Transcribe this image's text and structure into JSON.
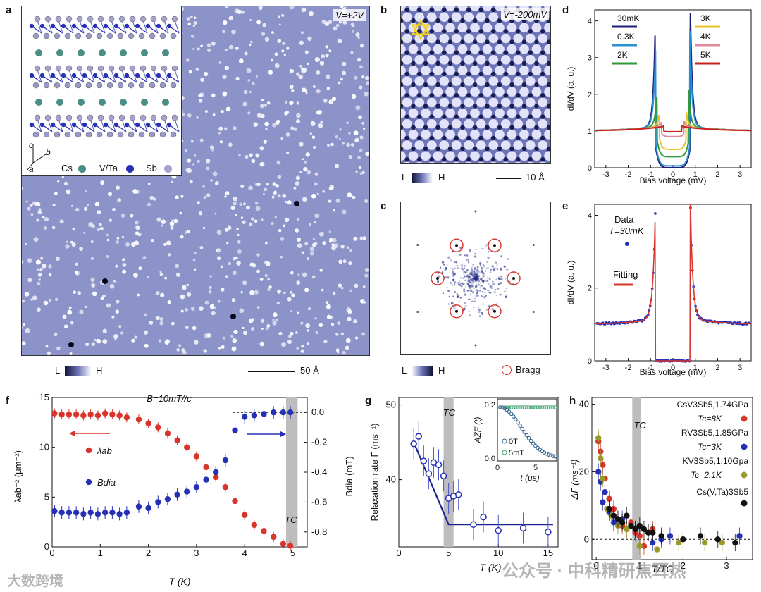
{
  "panels": {
    "a": {
      "label": "a",
      "voltage": "V=+2V",
      "legend": {
        "cs": "Cs",
        "vta": "V/Ta",
        "sb": "Sb"
      },
      "axes": {
        "c": "c",
        "b": "b",
        "a": "a"
      },
      "scale_label": "L",
      "scale_high": "H",
      "scalebar": "50 Å"
    },
    "b": {
      "label": "b",
      "voltage": "V=-200mV",
      "scale_label": "L",
      "scale_high": "H",
      "scalebar": "10 Å"
    },
    "c": {
      "label": "c",
      "scale_label": "L",
      "scale_high": "H",
      "bragg": "Bragg"
    },
    "d": {
      "label": "d"
    },
    "e": {
      "label": "e"
    },
    "f": {
      "label": "f",
      "field": "B=10mT//c"
    },
    "g": {
      "label": "g"
    },
    "h": {
      "label": "h"
    }
  },
  "colors": {
    "stm_bg": "#8c93c8",
    "red": "#d8342c",
    "blue": "#2630b4",
    "olive": "#9a9a2a",
    "black": "#111111"
  },
  "chart_data": [
    {
      "id": "d",
      "type": "line",
      "xlabel": "Bias voltage (mV)",
      "ylabel": "dI/dV (a. u.)",
      "xlim": [
        -3.5,
        3.5
      ],
      "ylim": [
        0,
        4.3
      ],
      "xticks": [
        "-3",
        "-2",
        "-1",
        "0",
        "1",
        "2",
        "3"
      ],
      "yticks": [
        "0",
        "1",
        "2",
        "3",
        "4"
      ],
      "series": [
        {
          "name": "30mK",
          "color": "#1c1f78",
          "gap": 0.78,
          "peak": 4.1,
          "floor": 0.0
        },
        {
          "name": "0.3K",
          "color": "#2a8fd0",
          "gap": 0.76,
          "peak": 3.6,
          "floor": 0.05
        },
        {
          "name": "2K",
          "color": "#2e9a3a",
          "gap": 0.7,
          "peak": 2.0,
          "floor": 0.3
        },
        {
          "name": "3K",
          "color": "#e8c42a",
          "gap": 0.6,
          "peak": 1.4,
          "floor": 0.5
        },
        {
          "name": "4K",
          "color": "#e08a98",
          "gap": 0.5,
          "peak": 1.15,
          "floor": 0.85
        },
        {
          "name": "5K",
          "color": "#c8201c",
          "gap": 0.4,
          "peak": 1.02,
          "floor": 0.98
        }
      ]
    },
    {
      "id": "e",
      "type": "scatter",
      "xlabel": "Bias voltage (mV)",
      "ylabel": "dI/dV (a. u.)",
      "xlim": [
        -3.5,
        3.5
      ],
      "ylim": [
        0,
        4.3
      ],
      "xticks": [
        "-3",
        "-2",
        "-1",
        "0",
        "1",
        "2",
        "3"
      ],
      "yticks": [
        "0",
        "2",
        "4"
      ],
      "legend": {
        "data": "Data",
        "temp": "T=30mK",
        "fit": "Fitting"
      },
      "gap": 0.78,
      "peak": 4.2
    },
    {
      "id": "f",
      "type": "scatter",
      "xlabel": "T (K)",
      "ylabel_left": "λab⁻² (μm⁻²)",
      "ylabel_right": "Bdia (mT)",
      "xlim": [
        0,
        5.3
      ],
      "ylim_left": [
        0,
        15
      ],
      "ylim_right": [
        -0.9,
        0.1
      ],
      "xticks": [
        "0",
        "1",
        "2",
        "3",
        "4",
        "5"
      ],
      "yticks_left": [
        "0",
        "5",
        "10",
        "15"
      ],
      "yticks_right": [
        "0.0",
        "-0.2",
        "-0.4",
        "-0.6",
        "-0.8"
      ],
      "tc_label": "TC",
      "tc": 4.98,
      "lambda_label": "λab",
      "bdia_label": "Bdia",
      "series": [
        {
          "name": "λab",
          "color": "#d8342c",
          "x": [
            0.05,
            0.2,
            0.35,
            0.5,
            0.65,
            0.8,
            0.95,
            1.1,
            1.25,
            1.4,
            1.55,
            1.8,
            2.0,
            2.2,
            2.4,
            2.6,
            2.8,
            3.0,
            3.2,
            3.4,
            3.6,
            3.8,
            4.0,
            4.2,
            4.4,
            4.6,
            4.8,
            4.95
          ],
          "y": [
            13.4,
            13.3,
            13.3,
            13.3,
            13.2,
            13.3,
            13.2,
            13.4,
            13.3,
            13.2,
            13.0,
            12.8,
            12.4,
            12.0,
            11.4,
            10.7,
            10.0,
            9.1,
            8.0,
            7.0,
            6.0,
            4.6,
            3.2,
            2.2,
            1.6,
            1.0,
            0.3,
            0.1
          ]
        },
        {
          "name": "Bdia",
          "color": "#2630b4",
          "x": [
            0.05,
            0.2,
            0.35,
            0.5,
            0.65,
            0.8,
            0.95,
            1.1,
            1.25,
            1.4,
            1.55,
            1.8,
            2.0,
            2.2,
            2.4,
            2.6,
            2.8,
            3.0,
            3.2,
            3.4,
            3.6,
            3.8,
            4.0,
            4.2,
            4.4,
            4.6,
            4.8,
            4.95
          ],
          "y": [
            -0.66,
            -0.67,
            -0.67,
            -0.67,
            -0.68,
            -0.67,
            -0.68,
            -0.67,
            -0.67,
            -0.68,
            -0.67,
            -0.63,
            -0.64,
            -0.6,
            -0.58,
            -0.55,
            -0.53,
            -0.5,
            -0.45,
            -0.4,
            -0.32,
            -0.12,
            -0.03,
            -0.02,
            -0.01,
            0.0,
            0.0,
            0.0
          ]
        }
      ]
    },
    {
      "id": "g",
      "type": "scatter",
      "xlabel": "T (K)",
      "ylabel": "Relaxation rate Γ (ms⁻¹)",
      "xlim": [
        0,
        16
      ],
      "ylim": [
        31,
        51
      ],
      "xticks": [
        "0",
        "5",
        "10",
        "15"
      ],
      "yticks": [
        "40",
        "50"
      ],
      "tc_label": "TC",
      "tc": 5.0,
      "x": [
        1.5,
        2.0,
        2.5,
        3.0,
        3.5,
        4.0,
        4.5,
        5.0,
        5.5,
        6.0,
        7.5,
        8.5,
        10.0,
        12.5,
        15.0
      ],
      "y": [
        44.8,
        45.8,
        42.5,
        40.8,
        42.3,
        42.0,
        40.5,
        37.5,
        37.8,
        38.0,
        34.0,
        35.0,
        33.2,
        33.5,
        33.0
      ],
      "fit": {
        "x": [
          1.5,
          5.0,
          15.5
        ],
        "y": [
          45.0,
          34.0,
          34.0
        ]
      },
      "inset": {
        "xlabel": "t (μs)",
        "ylabel": "AZF (t)",
        "xticks": [
          "0",
          "5"
        ],
        "yticks": [
          "0.0",
          "0.2"
        ],
        "legend": [
          "0T",
          "5mT"
        ]
      }
    },
    {
      "id": "h",
      "type": "scatter",
      "xlabel": "T/TC",
      "ylabel": "ΔΓ (ms⁻¹)",
      "xlim": [
        -0.1,
        3.6
      ],
      "ylim": [
        -6,
        42
      ],
      "xticks": [
        "0",
        "1",
        "2",
        "3"
      ],
      "yticks": [
        "0",
        "20",
        "40"
      ],
      "tc_label": "TC",
      "legend": [
        {
          "name": "CsV3Sb5,1.74GPa",
          "tc": "Tc=8K",
          "color": "#d8342c"
        },
        {
          "name": "RV3Sb5,1.85GPa",
          "tc": "Tc=3K",
          "color": "#2630b4"
        },
        {
          "name": "KV3Sb5,1.10Gpa",
          "tc": "Tc=2.1K",
          "color": "#9a9a2a"
        },
        {
          "name": "Cs(V,Ta)3Sb5",
          "tc": "",
          "color": "#111111"
        }
      ],
      "series": [
        {
          "name": "CsV3Sb5",
          "color": "#d8342c",
          "x": [
            0.05,
            0.1,
            0.15,
            0.2,
            0.3,
            0.4,
            0.5,
            0.6,
            0.7,
            0.8,
            0.9,
            1.0,
            1.1,
            1.3
          ],
          "y": [
            29,
            26,
            22,
            18,
            12,
            9,
            6,
            4,
            3,
            5,
            2,
            1,
            -2,
            3
          ]
        },
        {
          "name": "RV3Sb5",
          "color": "#2630b4",
          "x": [
            0.05,
            0.1,
            0.15,
            0.2,
            0.3,
            0.4,
            0.6,
            0.9,
            1.3,
            1.5,
            1.7,
            3.3
          ],
          "y": [
            20,
            17,
            11,
            14,
            8,
            5,
            6,
            3,
            -1,
            0,
            1,
            1
          ]
        },
        {
          "name": "KV3Sb5",
          "color": "#9a9a2a",
          "x": [
            0.05,
            0.1,
            0.15,
            0.25,
            0.35,
            0.5,
            0.7,
            1.0,
            1.4,
            1.9,
            2.5,
            2.9
          ],
          "y": [
            30,
            24,
            18,
            9,
            7,
            4,
            3,
            -2,
            -3,
            -1,
            -1,
            -1
          ]
        },
        {
          "name": "Cs(V,Ta)3Sb5",
          "color": "#111111",
          "x": [
            0.3,
            0.4,
            0.5,
            0.6,
            0.7,
            0.8,
            0.9,
            1.0,
            1.1,
            1.2,
            1.3,
            1.5,
            2.0,
            2.4,
            2.8,
            3.2
          ],
          "y": [
            9,
            7,
            6,
            5,
            7,
            4,
            3,
            4,
            3,
            2,
            2,
            1,
            0,
            1,
            0,
            -1
          ]
        }
      ]
    }
  ],
  "watermarks": {
    "left": "大数跨境",
    "right": "公众号 · 中科精研焦耳热"
  }
}
